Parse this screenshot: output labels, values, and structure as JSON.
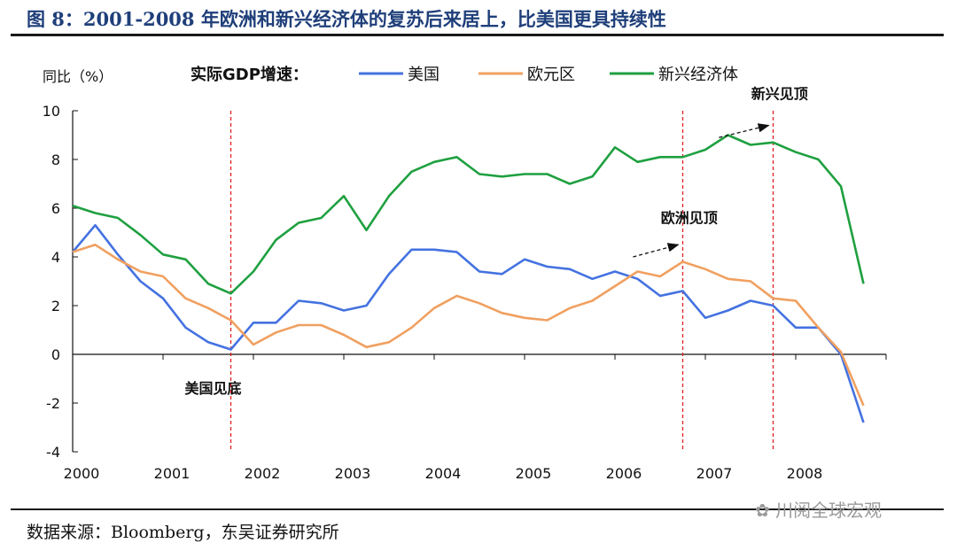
{
  "header": {
    "title": "图 8：2001-2008 年欧洲和新兴经济体的复苏后来居上，比美国更具持续性"
  },
  "footer": {
    "source": "数据来源：Bloomberg，东吴证券研究所",
    "watermark": "川阅全球宏观"
  },
  "chart_data": {
    "type": "line",
    "ylabel": "同比（%）",
    "legend_title": "实际GDP增速：",
    "legend_position": "top",
    "ylim": [
      -4,
      10
    ],
    "yticks": [
      -4,
      -2,
      0,
      2,
      4,
      6,
      8,
      10
    ],
    "xlim": [
      2000,
      2009
    ],
    "xticks": [
      "2000",
      "2001",
      "2002",
      "2003",
      "2004",
      "2005",
      "2006",
      "2007",
      "2008"
    ],
    "grid": false,
    "x": [
      2000.0,
      2000.25,
      2000.5,
      2000.75,
      2001.0,
      2001.25,
      2001.5,
      2001.75,
      2002.0,
      2002.25,
      2002.5,
      2002.75,
      2003.0,
      2003.25,
      2003.5,
      2003.75,
      2004.0,
      2004.25,
      2004.5,
      2004.75,
      2005.0,
      2005.25,
      2005.5,
      2005.75,
      2006.0,
      2006.25,
      2006.5,
      2006.75,
      2007.0,
      2007.25,
      2007.5,
      2007.75,
      2008.0,
      2008.25,
      2008.5,
      2008.75
    ],
    "series": [
      {
        "name": "美国",
        "color": "#4472e0",
        "values": [
          4.2,
          5.3,
          4.1,
          3.0,
          2.3,
          1.1,
          0.5,
          0.2,
          1.3,
          1.3,
          2.2,
          2.1,
          1.8,
          2.0,
          3.3,
          4.3,
          4.3,
          4.2,
          3.4,
          3.3,
          3.9,
          3.6,
          3.5,
          3.1,
          3.4,
          3.1,
          2.4,
          2.6,
          1.5,
          1.8,
          2.2,
          2.0,
          1.1,
          1.1,
          0.0,
          -2.8
        ]
      },
      {
        "name": "欧元区",
        "color": "#f0a060",
        "values": [
          4.2,
          4.5,
          3.9,
          3.4,
          3.2,
          2.3,
          1.9,
          1.4,
          0.4,
          0.9,
          1.2,
          1.2,
          0.8,
          0.3,
          0.5,
          1.1,
          1.9,
          2.4,
          2.1,
          1.7,
          1.5,
          1.4,
          1.9,
          2.2,
          2.8,
          3.4,
          3.2,
          3.8,
          3.5,
          3.1,
          3.0,
          2.3,
          2.2,
          1.1,
          0.1,
          -2.1
        ]
      },
      {
        "name": "新兴经济体",
        "color": "#1fa040",
        "values": [
          6.1,
          5.8,
          5.6,
          4.9,
          4.1,
          3.9,
          2.9,
          2.5,
          3.4,
          4.7,
          5.4,
          5.6,
          6.5,
          5.1,
          6.5,
          7.5,
          7.9,
          8.1,
          7.4,
          7.3,
          7.4,
          7.4,
          7.0,
          7.3,
          8.5,
          7.9,
          8.1,
          8.1,
          8.4,
          9.0,
          8.6,
          8.7,
          8.3,
          8.0,
          6.9,
          2.9
        ]
      }
    ],
    "vlines": [
      2001.75,
      2006.75,
      2007.75
    ],
    "annotations": [
      {
        "text": "美国见底",
        "x": 2001.75,
        "y": -1.6
      },
      {
        "text": "欧洲见顶",
        "x": 2006.9,
        "y": 5.4
      },
      {
        "text": "新兴见顶",
        "x": 2007.9,
        "y": 10.5
      }
    ]
  }
}
